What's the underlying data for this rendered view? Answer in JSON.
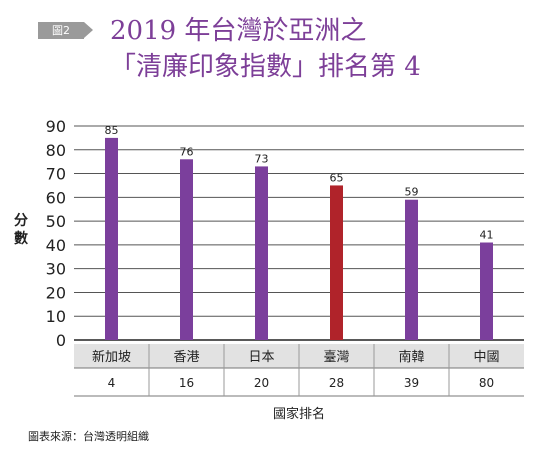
{
  "badge": "圖2",
  "title_line1": "2019 年台灣於亞洲之",
  "title_line2": "「清廉印象指數」排名第 4",
  "source": "圖表來源：台灣透明組織",
  "colors": {
    "bar": "#7b3f9c",
    "highlight": "#b0232a",
    "title": "#7d3f98",
    "table_row": "#e2e2e2"
  },
  "chart_data": {
    "type": "bar",
    "title": "2019 年台灣於亞洲之「清廉印象指數」排名第 4",
    "ylabel": "分數",
    "xlabel": "國家排名",
    "ylim": [
      0,
      90
    ],
    "yticks": [
      0,
      10,
      20,
      30,
      40,
      50,
      60,
      70,
      80,
      90
    ],
    "categories": [
      "新加坡",
      "香港",
      "日本",
      "臺灣",
      "南韓",
      "中國"
    ],
    "values": [
      85,
      76,
      73,
      65,
      59,
      41
    ],
    "ranks": [
      "4",
      "16",
      "20",
      "28",
      "39",
      "80"
    ],
    "highlight": "臺灣",
    "grid": true
  }
}
